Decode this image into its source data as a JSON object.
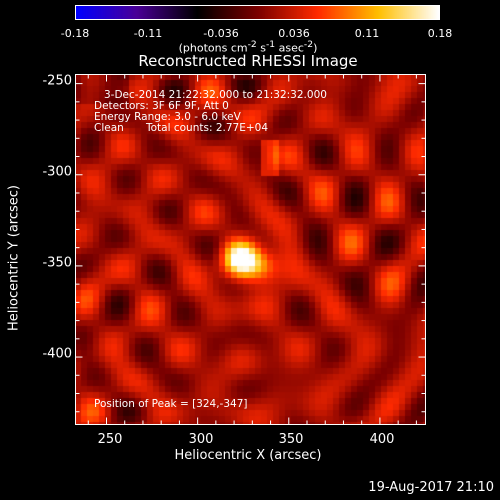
{
  "colorbar": {
    "ticks": [
      "-0.18",
      "-0.11",
      "-0.036",
      "0.036",
      "0.11",
      "0.18"
    ],
    "units_html": "(photons cm<sup>-2</sup> s<sup>-1</sup> asec<sup>-2</sup>)",
    "range": [
      -0.18,
      0.18
    ],
    "colors": [
      "#0000ff",
      "#4a0096",
      "#000000",
      "#7a0000",
      "#ff2a00",
      "#ffbf00",
      "#ffffff"
    ]
  },
  "chart_data": {
    "type": "heatmap",
    "title": "Reconstructed RHESSI Image",
    "xlabel": "Heliocentric X (arcsec)",
    "ylabel": "Heliocentric Y (arcsec)",
    "xlim": [
      233,
      425
    ],
    "ylim": [
      -437,
      -245
    ],
    "xticks": [
      "250",
      "300",
      "350",
      "400"
    ],
    "yticks": [
      "-250",
      "-300",
      "-350",
      "-400"
    ],
    "peak": [
      324,
      -347
    ],
    "sources": [
      {
        "x": 324,
        "y": -347,
        "value": 0.18
      },
      {
        "x": 336,
        "y": -351,
        "value": 0.11
      }
    ]
  },
  "annotations": {
    "time": "3-Dec-2014 21:22:32.000 to 21:32:32.000",
    "detectors": "Detectors: 3F 6F 9F, Att 0",
    "energy": "Energy Range: 3.0 - 6.0 keV",
    "method": "Clean",
    "counts": "Total counts: 2.77E+04",
    "peak": "Position of Peak = [324,-347]"
  },
  "footer": "19-Aug-2017 21:10"
}
